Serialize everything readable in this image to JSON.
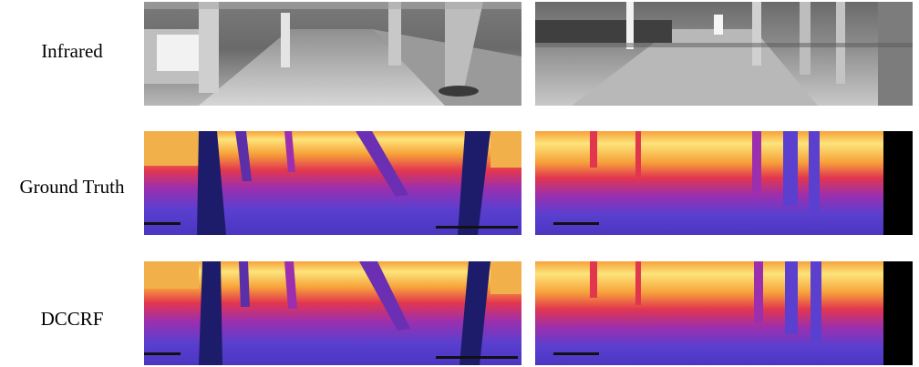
{
  "figure": {
    "rows": [
      {
        "label": "Infrared",
        "kind": "infrared"
      },
      {
        "label": "Ground Truth",
        "kind": "depth"
      },
      {
        "label": "DCCRF",
        "kind": "depth"
      }
    ],
    "colors": {
      "depth_far": "#fce47a",
      "depth_mid_far": "#f7a13a",
      "depth_mid": "#e2364f",
      "depth_mid_near": "#9b2fae",
      "depth_near": "#5b3fcf",
      "depth_nearest": "#3a2fa0",
      "depth_invalid": "#000000",
      "tree_trunk": "#1c1c6b"
    }
  }
}
